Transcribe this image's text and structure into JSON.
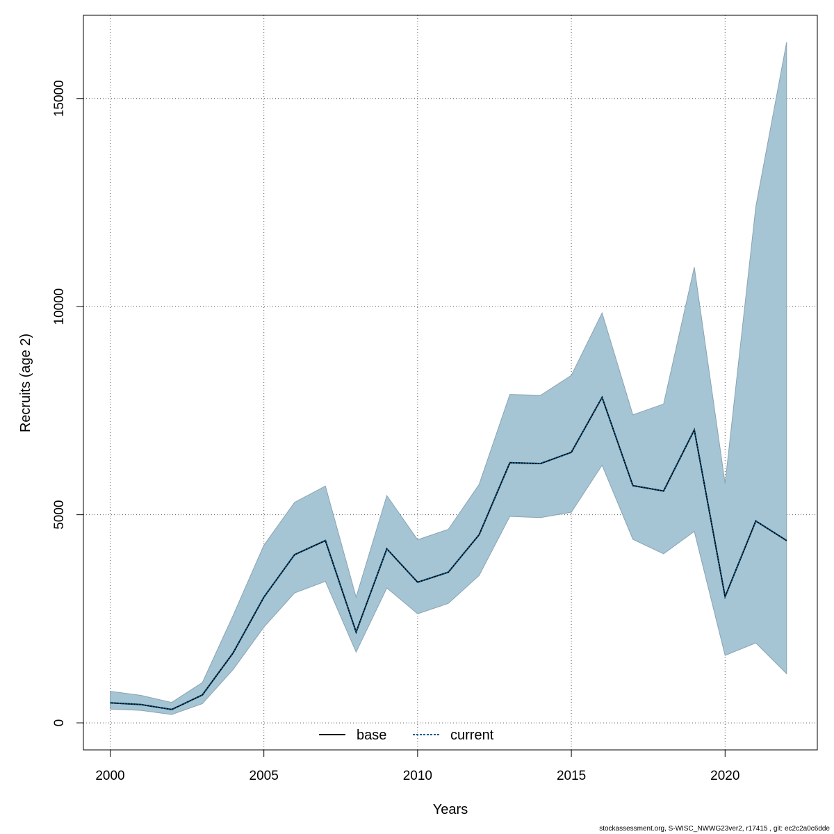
{
  "chart_data": {
    "type": "line",
    "xlabel": "Years",
    "ylabel": "Recruits (age 2)",
    "xlim": [
      1999.13,
      2023.0
    ],
    "ylim": [
      -650,
      17000
    ],
    "xticks": [
      2000,
      2005,
      2010,
      2015,
      2020
    ],
    "yticks": [
      0,
      5000,
      10000,
      15000
    ],
    "grid": true,
    "legend_position": "bottom",
    "x": [
      2000,
      2001,
      2002,
      2003,
      2004,
      2005,
      2006,
      2007,
      2008,
      2009,
      2010,
      2011,
      2012,
      2013,
      2014,
      2015,
      2016,
      2017,
      2018,
      2019,
      2020,
      2021,
      2022
    ],
    "series": [
      {
        "name": "base",
        "style": "solid",
        "color": "#000000",
        "values": [
          340,
          290,
          190,
          450,
          1250,
          2250,
          3100,
          3380,
          1650,
          3220,
          2600,
          2850,
          3530,
          4950,
          4920,
          5050,
          6180,
          4400,
          4050,
          4580,
          1600,
          1900,
          1150
        ]
      },
      {
        "name": "current",
        "style": "dotted",
        "color": "#005b8c",
        "values": [
          330,
          300,
          200,
          460,
          1280,
          2300,
          3120,
          3400,
          1700,
          3240,
          2620,
          2870,
          3540,
          4960,
          4930,
          5060,
          6190,
          4410,
          4060,
          4600,
          1620,
          1920,
          1180
        ]
      }
    ],
    "line_values": [
      480,
      440,
      320,
      670,
      1680,
      3020,
      4040,
      4380,
      2180,
      4180,
      3380,
      3620,
      4520,
      6250,
      6230,
      6500,
      7820,
      5700,
      5570,
      7040,
      3030,
      4850,
      4380
    ],
    "band": {
      "color": "#a5c4d4",
      "lower": [
        330,
        300,
        200,
        460,
        1280,
        2300,
        3120,
        3400,
        1700,
        3240,
        2620,
        2870,
        3540,
        4960,
        4930,
        5060,
        6190,
        4410,
        4060,
        4600,
        1620,
        1920,
        1180
      ],
      "upper": [
        760,
        660,
        490,
        970,
        2580,
        4270,
        5300,
        5690,
        3020,
        5460,
        4400,
        4650,
        5730,
        7890,
        7870,
        8350,
        9850,
        7400,
        7660,
        10950,
        5750,
        12400,
        16350
      ]
    }
  },
  "footer": "stockassessment.org, S-WISC_NWWG23ver2, r17415 , git: ec2c2a0c6dde"
}
